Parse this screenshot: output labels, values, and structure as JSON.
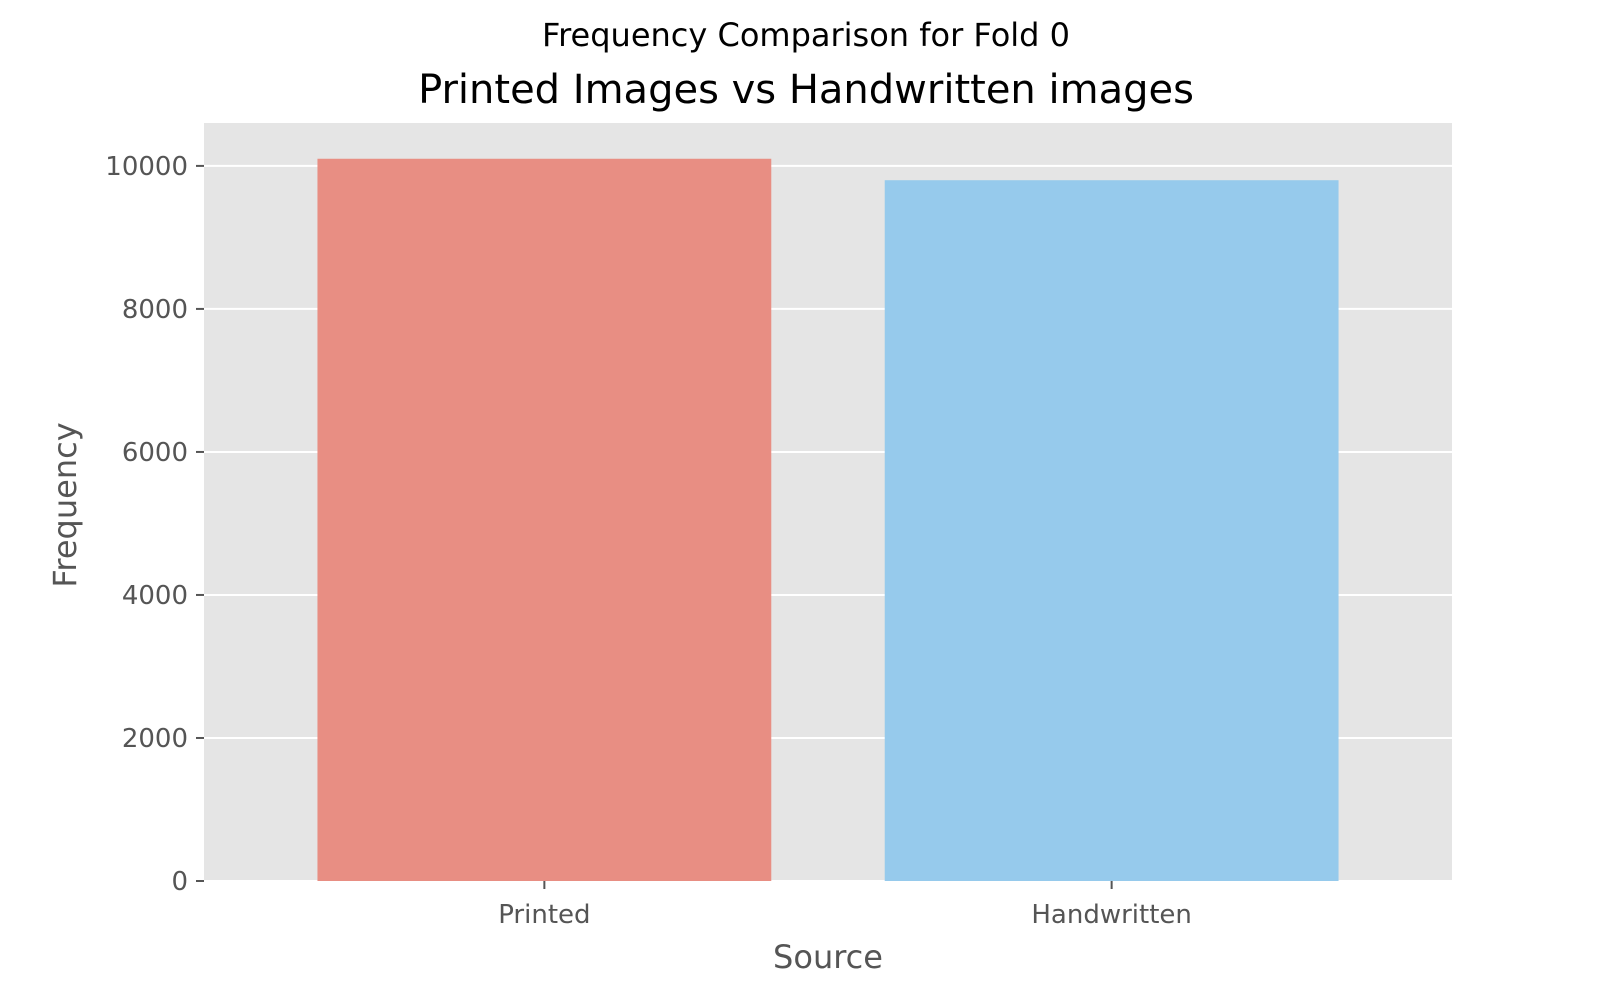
{
  "chart_data": {
    "type": "bar",
    "suptitle": "Frequency Comparison for Fold 0",
    "title": "Printed Images vs Handwritten images",
    "xlabel": "Source",
    "ylabel": "Frequency",
    "categories": [
      "Printed",
      "Handwritten"
    ],
    "values": [
      10100,
      9800
    ],
    "colors": [
      "#e88e83",
      "#96caec"
    ],
    "ylim": [
      0,
      10600
    ],
    "yticks": [
      0,
      2000,
      4000,
      6000,
      8000,
      10000
    ],
    "ytick_labels": [
      "0",
      "2000",
      "4000",
      "6000",
      "8000",
      "10000"
    ],
    "grid": true,
    "legend": "none",
    "style": {
      "plot_background": "#e5e5e5",
      "grid_color": "#ffffff",
      "tick_color": "#555555"
    }
  }
}
